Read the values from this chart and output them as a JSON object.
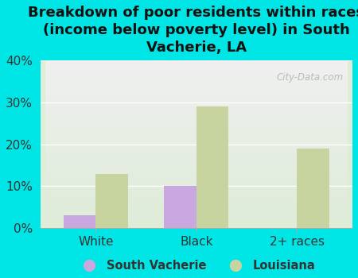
{
  "title": "Breakdown of poor residents within races\n(income below poverty level) in South\nVacherie, LA",
  "categories": [
    "White",
    "Black",
    "2+ races"
  ],
  "south_vacherie_values": [
    3,
    10,
    0
  ],
  "louisiana_values": [
    13,
    29,
    19
  ],
  "south_vacherie_color": "#c9a8e0",
  "louisiana_color": "#c8d4a0",
  "background_color": "#00e5e5",
  "plot_bg_top": "#f0f0f0",
  "plot_bg_bottom": "#deecd8",
  "ylim": [
    0,
    40
  ],
  "yticks": [
    0,
    10,
    20,
    30,
    40
  ],
  "bar_width": 0.32,
  "title_fontsize": 13,
  "tick_fontsize": 11,
  "legend_labels": [
    "South Vacherie",
    "Louisiana"
  ],
  "watermark": "City-Data.com"
}
